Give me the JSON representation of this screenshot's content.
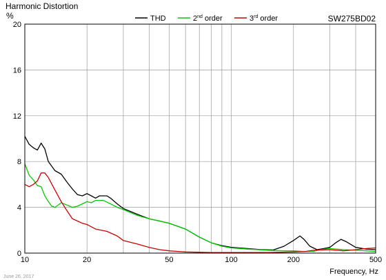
{
  "chart_data": {
    "type": "line",
    "title": "Harmonic Distortion",
    "model": "SW275BD02",
    "ylabel": "%",
    "xlabel": "Frequency, Hz",
    "date": "June 26, 2017",
    "x_scale": "log",
    "xlim": [
      10,
      500
    ],
    "ylim": [
      0,
      20
    ],
    "grid": true,
    "legend_position": "top",
    "y_ticks": [
      0,
      4,
      8,
      12,
      16,
      20
    ],
    "x_ticks": [
      10,
      20,
      50,
      100,
      200,
      500
    ],
    "series": [
      {
        "name": "THD",
        "color": "#000000",
        "points": [
          [
            10,
            10.2
          ],
          [
            10.5,
            9.5
          ],
          [
            11,
            9.2
          ],
          [
            11.5,
            9.0
          ],
          [
            12,
            9.6
          ],
          [
            12.5,
            9.1
          ],
          [
            13,
            8.0
          ],
          [
            14,
            7.2
          ],
          [
            15,
            6.9
          ],
          [
            16,
            6.2
          ],
          [
            17,
            5.6
          ],
          [
            18,
            5.1
          ],
          [
            19,
            5.0
          ],
          [
            20,
            5.2
          ],
          [
            21,
            5.0
          ],
          [
            22,
            4.8
          ],
          [
            23,
            5.0
          ],
          [
            24,
            5.0
          ],
          [
            25,
            5.0
          ],
          [
            26,
            4.8
          ],
          [
            28,
            4.3
          ],
          [
            30,
            3.9
          ],
          [
            35,
            3.4
          ],
          [
            40,
            3.0
          ],
          [
            45,
            2.8
          ],
          [
            50,
            2.6
          ],
          [
            60,
            2.1
          ],
          [
            70,
            1.4
          ],
          [
            80,
            0.9
          ],
          [
            90,
            0.65
          ],
          [
            100,
            0.5
          ],
          [
            120,
            0.4
          ],
          [
            140,
            0.3
          ],
          [
            160,
            0.28
          ],
          [
            180,
            0.6
          ],
          [
            200,
            1.1
          ],
          [
            215,
            1.5
          ],
          [
            225,
            1.2
          ],
          [
            240,
            0.6
          ],
          [
            260,
            0.3
          ],
          [
            280,
            0.4
          ],
          [
            300,
            0.5
          ],
          [
            320,
            0.9
          ],
          [
            340,
            1.2
          ],
          [
            360,
            1.0
          ],
          [
            400,
            0.5
          ],
          [
            450,
            0.35
          ],
          [
            500,
            0.3
          ]
        ]
      },
      {
        "name": "2nd order",
        "color": "#00cc00",
        "points": [
          [
            10,
            7.8
          ],
          [
            10.5,
            6.8
          ],
          [
            11,
            6.4
          ],
          [
            11.5,
            5.9
          ],
          [
            12,
            5.8
          ],
          [
            12.5,
            5.0
          ],
          [
            13,
            4.5
          ],
          [
            13.5,
            4.1
          ],
          [
            14,
            4.0
          ],
          [
            15,
            4.4
          ],
          [
            16,
            4.2
          ],
          [
            17,
            4.0
          ],
          [
            18,
            4.1
          ],
          [
            19,
            4.3
          ],
          [
            20,
            4.5
          ],
          [
            21,
            4.4
          ],
          [
            22,
            4.6
          ],
          [
            24,
            4.6
          ],
          [
            26,
            4.3
          ],
          [
            28,
            4.0
          ],
          [
            30,
            3.8
          ],
          [
            35,
            3.3
          ],
          [
            40,
            3.0
          ],
          [
            45,
            2.8
          ],
          [
            50,
            2.6
          ],
          [
            60,
            2.1
          ],
          [
            70,
            1.4
          ],
          [
            80,
            0.9
          ],
          [
            90,
            0.6
          ],
          [
            100,
            0.45
          ],
          [
            120,
            0.35
          ],
          [
            150,
            0.25
          ],
          [
            180,
            0.2
          ],
          [
            200,
            0.2
          ],
          [
            220,
            0.15
          ],
          [
            250,
            0.15
          ],
          [
            270,
            0.3
          ],
          [
            300,
            0.4
          ],
          [
            350,
            0.3
          ],
          [
            400,
            0.25
          ],
          [
            450,
            0.2
          ],
          [
            500,
            0.15
          ]
        ]
      },
      {
        "name": "3rd order",
        "color": "#cc0000",
        "points": [
          [
            10,
            6.0
          ],
          [
            10.5,
            5.8
          ],
          [
            11,
            6.0
          ],
          [
            11.5,
            6.3
          ],
          [
            12,
            7.0
          ],
          [
            12.5,
            7.0
          ],
          [
            13,
            6.6
          ],
          [
            14,
            5.5
          ],
          [
            15,
            4.5
          ],
          [
            16,
            3.7
          ],
          [
            17,
            3.0
          ],
          [
            18,
            2.8
          ],
          [
            19,
            2.6
          ],
          [
            20,
            2.5
          ],
          [
            22,
            2.1
          ],
          [
            25,
            1.9
          ],
          [
            28,
            1.5
          ],
          [
            30,
            1.1
          ],
          [
            35,
            0.8
          ],
          [
            40,
            0.5
          ],
          [
            45,
            0.3
          ],
          [
            50,
            0.2
          ],
          [
            60,
            0.1
          ],
          [
            80,
            0.05
          ],
          [
            100,
            0.05
          ],
          [
            150,
            0.05
          ],
          [
            200,
            0.1
          ],
          [
            230,
            0.15
          ],
          [
            250,
            0.25
          ],
          [
            300,
            0.3
          ],
          [
            350,
            0.2
          ],
          [
            400,
            0.3
          ],
          [
            450,
            0.4
          ],
          [
            500,
            0.45
          ]
        ]
      }
    ]
  }
}
